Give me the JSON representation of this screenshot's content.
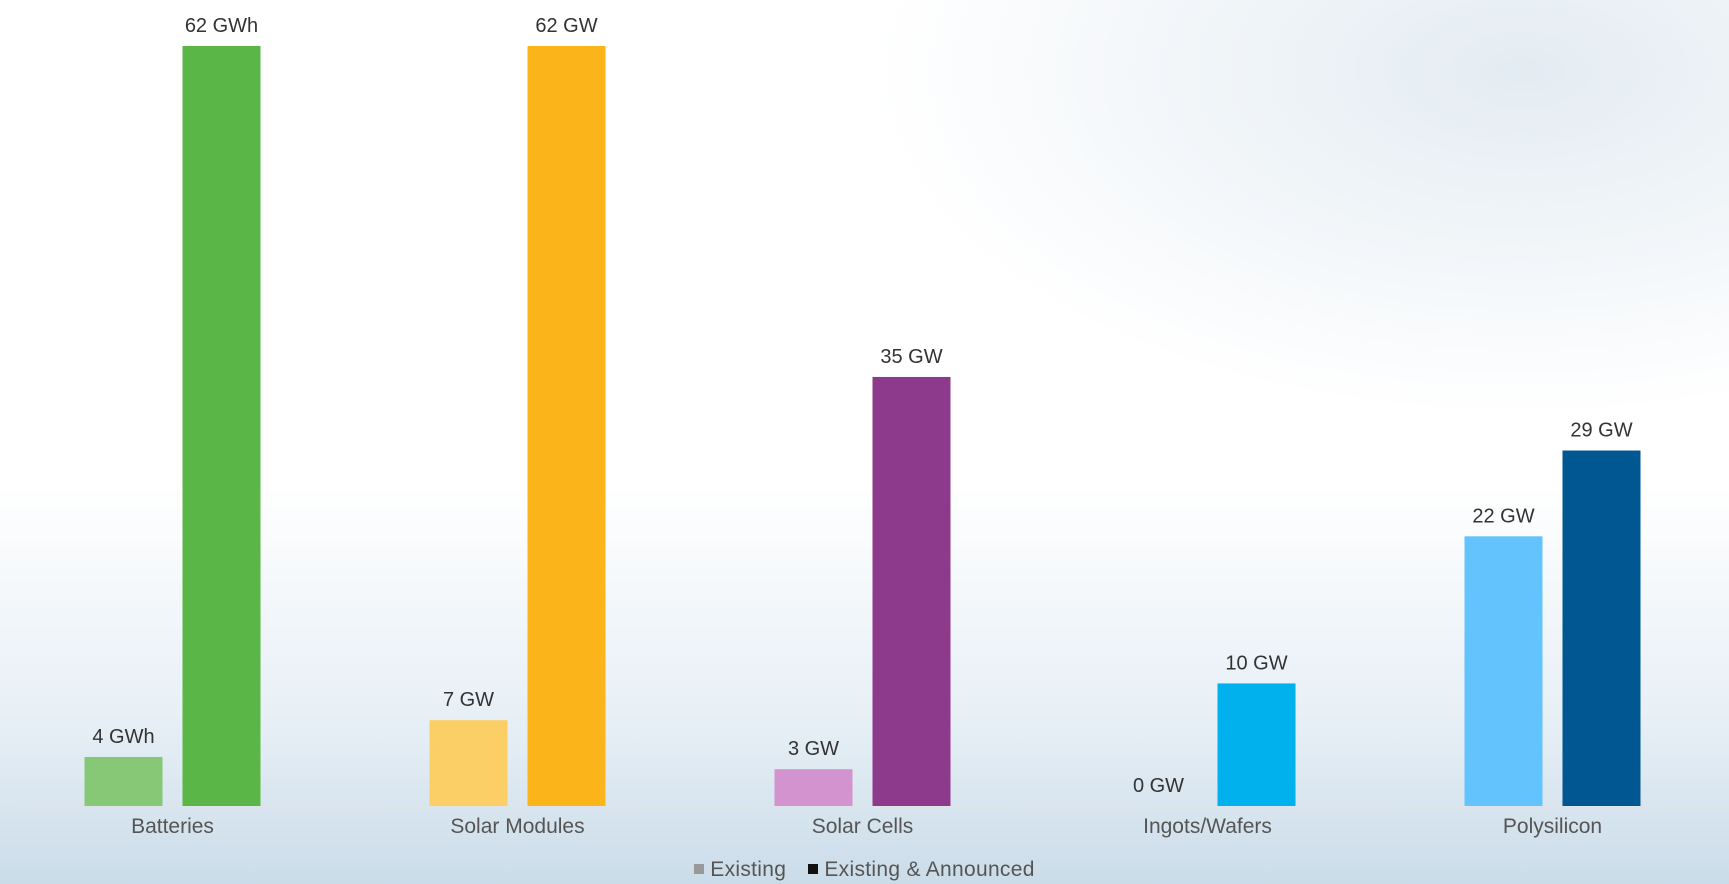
{
  "chart_data": {
    "type": "bar",
    "title": "",
    "xlabel": "",
    "ylabel": "",
    "categories": [
      "Batteries",
      "Solar Modules",
      "Solar Cells",
      "Ingots/Wafers",
      "Polysilicon"
    ],
    "series": [
      {
        "name": "Existing",
        "values": [
          4,
          7,
          3,
          0,
          22
        ],
        "labels": [
          "4 GWh",
          "7 GW",
          "3 GW",
          "0 GW",
          "22 GW"
        ],
        "colors": [
          "#86c876",
          "#fbcf66",
          "#d393cf",
          "#ffffff",
          "#63c3fd"
        ]
      },
      {
        "name": "Existing & Announced",
        "values": [
          62,
          62,
          35,
          10,
          29
        ],
        "labels": [
          "62 GWh",
          "62 GW",
          "35 GW",
          "10 GW",
          "29 GW"
        ],
        "colors": [
          "#5ab646",
          "#fbb419",
          "#8e3a8c",
          "#00b1ee",
          "#005791"
        ]
      }
    ],
    "ylim": [
      0,
      62
    ],
    "grid": false,
    "legend_position": "bottom-center"
  },
  "legend": {
    "existing_label": "Existing",
    "existing_color": "#999999",
    "announced_label": "Existing & Announced",
    "announced_color": "#111111"
  }
}
